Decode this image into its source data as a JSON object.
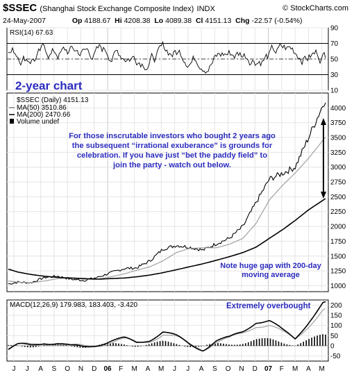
{
  "header": {
    "symbol": "$SSEC",
    "name": "(Shanghai Stock Exchange Composite Index)",
    "exchange": "INDX",
    "brand": "© StockCharts.com",
    "date": "24-May-2007",
    "op_label": "Op",
    "op": "4188.67",
    "hi_label": "Hi",
    "hi": "4208.38",
    "lo_label": "Lo",
    "lo": "4089.38",
    "cl_label": "Cl",
    "cl": "4151.13",
    "chg_label": "Chg",
    "chg": "-22.57 (-0.54%)"
  },
  "chart_data": [
    {
      "type": "line",
      "panel": "RSI",
      "legend": "RSI(14) 67.63",
      "ylim": [
        10,
        90
      ],
      "yticks": [
        10,
        30,
        50,
        70,
        90
      ],
      "reference_lines": [
        30,
        70
      ],
      "grid": true
    },
    {
      "type": "line",
      "panel": "price",
      "title_overlay": "2-year chart",
      "legend": [
        {
          "name": "$SSEC (Daily) 4151.13",
          "color": "#000000"
        },
        {
          "name": "MA(50) 3510.86",
          "color": "#a0a0a0"
        },
        {
          "name": "MA(200) 2470.66",
          "color": "#000000"
        },
        {
          "name": "Volume undef",
          "color": "#000000"
        }
      ],
      "ylim": [
        900,
        4250
      ],
      "yticks": [
        1000,
        1250,
        1500,
        1750,
        2000,
        2250,
        2500,
        2750,
        3000,
        3250,
        3500,
        3750,
        4000
      ],
      "x": [
        "2005-05-24",
        "2005-06-15",
        "2005-07-15",
        "2005-08-15",
        "2005-09-15",
        "2005-10-15",
        "2005-11-15",
        "2005-12-15",
        "2006-01-15",
        "2006-02-15",
        "2006-03-15",
        "2006-04-15",
        "2006-05-15",
        "2006-06-15",
        "2006-07-15",
        "2006-08-15",
        "2006-09-15",
        "2006-10-15",
        "2006-11-15",
        "2006-12-15",
        "2007-01-15",
        "2007-02-15",
        "2007-03-15",
        "2007-04-15",
        "2007-05-24"
      ],
      "series": [
        {
          "name": "$SSEC (Daily) 4151.13",
          "values": [
            1030,
            1060,
            1050,
            1140,
            1160,
            1110,
            1090,
            1140,
            1220,
            1290,
            1300,
            1420,
            1620,
            1680,
            1650,
            1600,
            1710,
            1800,
            2000,
            2400,
            2800,
            2900,
            3000,
            3500,
            4151
          ]
        },
        {
          "name": "MA(50) 3510.86",
          "values": [
            1080,
            1060,
            1050,
            1080,
            1120,
            1130,
            1110,
            1110,
            1150,
            1200,
            1260,
            1320,
            1420,
            1560,
            1630,
            1640,
            1640,
            1700,
            1800,
            2050,
            2450,
            2700,
            2900,
            3150,
            3510
          ]
        },
        {
          "name": "MA(200) 2470.66",
          "values": [
            1280,
            1230,
            1190,
            1160,
            1140,
            1130,
            1120,
            1110,
            1120,
            1130,
            1150,
            1180,
            1220,
            1270,
            1320,
            1370,
            1430,
            1490,
            1560,
            1650,
            1800,
            1950,
            2100,
            2280,
            2470
          ]
        }
      ],
      "annotations": [
        "For those inscrutable investors who bought 2 years ago",
        "the subsequent “irrational exuberance” is grounds for",
        "celebration. If you have just “bet the paddy field” to",
        "join the party - watch out below.",
        "Note huge gap with 200-day",
        "moving average"
      ],
      "grid": true
    },
    {
      "type": "line",
      "panel": "MACD",
      "legend": "MACD(12,26,9) 179.983, 183.403, -3.420",
      "annotation": "Extremely overbought",
      "ylim": [
        -75,
        225
      ],
      "yticks": [
        -50,
        0,
        50,
        100,
        150,
        200
      ],
      "grid": true
    }
  ],
  "x_axis": {
    "labels": [
      "J",
      "J",
      "A",
      "S",
      "O",
      "N",
      "D",
      "06",
      "F",
      "M",
      "A",
      "M",
      "J",
      "J",
      "A",
      "S",
      "O",
      "N",
      "D",
      "07",
      "F",
      "M",
      "A",
      "M"
    ]
  },
  "colors": {
    "annotation": "#2b2bbf",
    "rsi_fill": "#808080",
    "ma50": "#a0a0a0",
    "arrow": "#000000"
  }
}
